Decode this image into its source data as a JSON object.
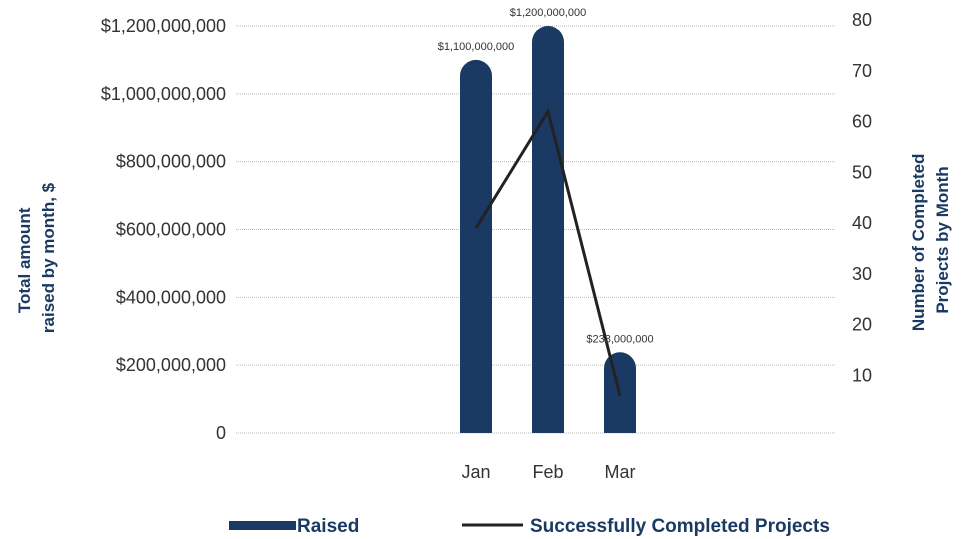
{
  "chart_data": {
    "type": "bar",
    "categories": [
      "Jan",
      "Feb",
      "Mar"
    ],
    "series": [
      {
        "name": "Raised",
        "type": "bar",
        "axis": "left",
        "values": [
          1100000000,
          1200000000,
          238000000
        ],
        "data_labels": [
          "$1,100,000,000",
          "$1,200,000,000",
          "$238,000,000"
        ]
      },
      {
        "name": "Successfully Completed Projects",
        "type": "line",
        "axis": "right",
        "values": [
          39,
          62,
          6
        ]
      }
    ],
    "y_left": {
      "label_lines": [
        "Total amount",
        "raised by month, $"
      ],
      "ylim": [
        0,
        1200000000
      ],
      "ticks": [
        0,
        200000000,
        400000000,
        600000000,
        800000000,
        1000000000,
        1200000000
      ],
      "tick_labels": [
        "0",
        "$200,000,000",
        "$400,000,000",
        "$600,000,000",
        "$800,000,000",
        "$1,000,000,000",
        "$1,200,000,000"
      ]
    },
    "y_right": {
      "label_lines": [
        "Number of Completed",
        "Projects by Month"
      ],
      "ylim": [
        0,
        80
      ],
      "ticks": [
        10,
        20,
        30,
        40,
        50,
        60,
        70,
        80
      ],
      "tick_labels": [
        "10",
        "20",
        "30",
        "40",
        "50",
        "60",
        "70",
        "80"
      ]
    },
    "grid": true,
    "legend_position": "bottom",
    "colors": {
      "bar": "#1b3a63",
      "line": "#222222",
      "grid": "#b8b8b8",
      "axis_title": "#1b3a63"
    }
  }
}
